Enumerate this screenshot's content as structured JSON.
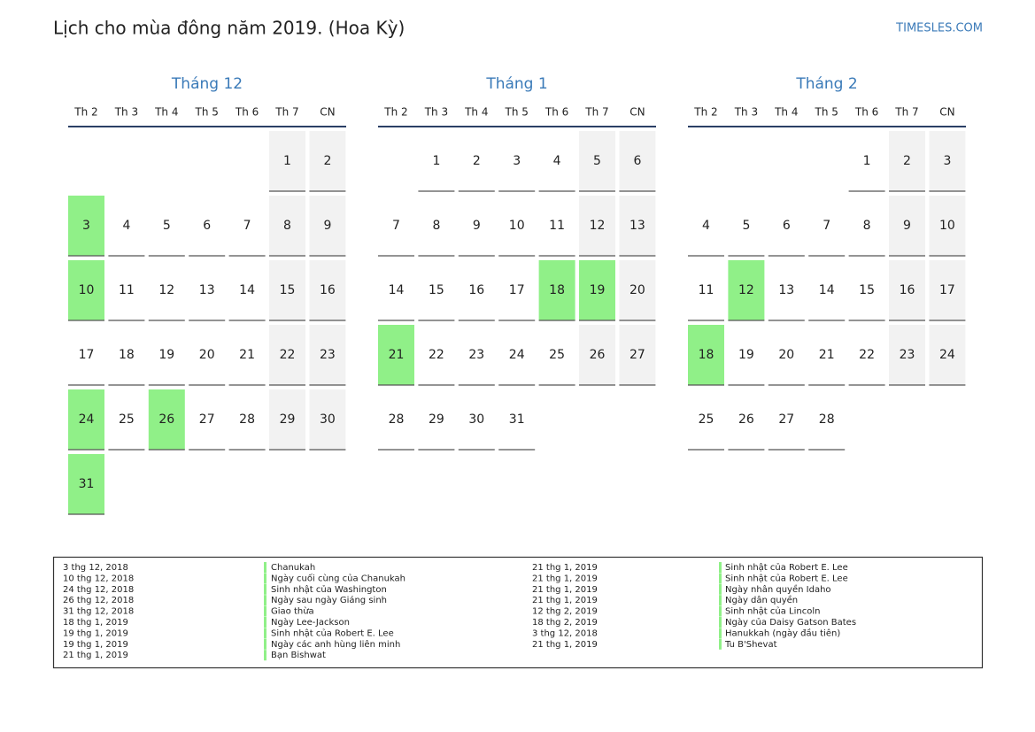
{
  "title": "Lịch cho mùa đông năm 2019. (Hoa Kỳ)",
  "site": "TIMESLES.COM",
  "weekdays": [
    "Th 2",
    "Th 3",
    "Th 4",
    "Th 5",
    "Th 6",
    "Th 7",
    "CN"
  ],
  "months": [
    {
      "name": "Tháng 12",
      "weeks": [
        [
          null,
          null,
          null,
          null,
          null,
          1,
          2
        ],
        [
          {
            "value": 3,
            "highlight": true
          },
          4,
          5,
          6,
          7,
          8,
          9
        ],
        [
          {
            "value": 10,
            "highlight": true
          },
          11,
          12,
          13,
          14,
          15,
          16
        ],
        [
          17,
          18,
          19,
          20,
          21,
          22,
          23
        ],
        [
          {
            "value": 24,
            "highlight": true
          },
          25,
          {
            "value": 26,
            "highlight": true
          },
          27,
          28,
          29,
          30
        ],
        [
          {
            "value": 31,
            "highlight": true
          }
        ]
      ]
    },
    {
      "name": "Tháng 1",
      "weeks": [
        [
          null,
          1,
          2,
          3,
          4,
          5,
          6
        ],
        [
          7,
          8,
          9,
          10,
          11,
          12,
          13
        ],
        [
          14,
          15,
          16,
          17,
          {
            "value": 18,
            "highlight": true
          },
          {
            "value": 19,
            "highlight": true
          },
          20
        ],
        [
          {
            "value": 21,
            "highlight": true
          },
          22,
          23,
          24,
          25,
          26,
          27
        ],
        [
          28,
          29,
          30,
          31
        ]
      ]
    },
    {
      "name": "Tháng 2",
      "weeks": [
        [
          null,
          null,
          null,
          null,
          1,
          2,
          3
        ],
        [
          4,
          5,
          6,
          7,
          8,
          9,
          10
        ],
        [
          11,
          {
            "value": 12,
            "highlight": true
          },
          13,
          14,
          15,
          16,
          17
        ],
        [
          {
            "value": 18,
            "highlight": true
          },
          19,
          20,
          21,
          22,
          23,
          24
        ],
        [
          25,
          26,
          27,
          28
        ]
      ]
    }
  ],
  "holidays": [
    {
      "date": "3 thg 12, 2018",
      "name": "Chanukah"
    },
    {
      "date": "10 thg 12, 2018",
      "name": "Ngày cuối cùng của Chanukah"
    },
    {
      "date": "24 thg 12, 2018",
      "name": "Sinh nhật của Washington"
    },
    {
      "date": "26 thg 12, 2018",
      "name": "Ngày sau ngày Giáng sinh"
    },
    {
      "date": "31 thg 12, 2018",
      "name": "Giao thừa"
    },
    {
      "date": "18 thg 1, 2019",
      "name": "Ngày Lee-Jackson"
    },
    {
      "date": "19 thg 1, 2019",
      "name": "Sinh nhật của Robert E. Lee"
    },
    {
      "date": "19 thg 1, 2019",
      "name": "Ngày các anh hùng liên minh"
    },
    {
      "date": "21 thg 1, 2019",
      "name": "Bạn Bishwat"
    },
    {
      "date": "21 thg 1, 2019",
      "name": "Sinh nhật của Robert E. Lee"
    },
    {
      "date": "21 thg 1, 2019",
      "name": "Sinh nhật của Robert E. Lee"
    },
    {
      "date": "21 thg 1, 2019",
      "name": "Ngày nhân quyền Idaho"
    },
    {
      "date": "21 thg 1, 2019",
      "name": "Ngày dân quyền"
    },
    {
      "date": "12 thg 2, 2019",
      "name": "Sinh nhật của Lincoln"
    },
    {
      "date": "18 thg 2, 2019",
      "name": "Ngày của Daisy Gatson Bates"
    },
    {
      "date": "3 thg 12, 2018",
      "name": "Hanukkah (ngày đầu tiên)"
    },
    {
      "date": "21 thg 1, 2019",
      "name": "Tu B'Shevat"
    }
  ]
}
